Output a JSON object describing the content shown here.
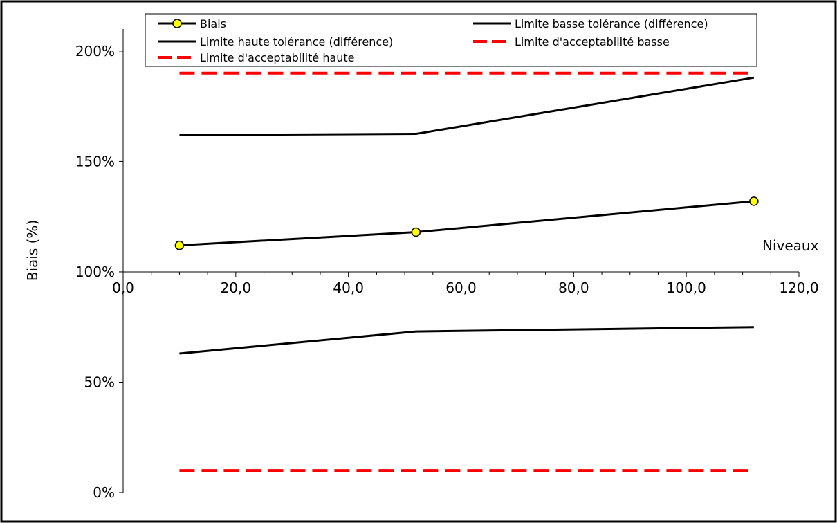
{
  "chart_data": {
    "type": "line",
    "xlabel": "Niveaux",
    "ylabel": "Biais (%)",
    "xlim": [
      0,
      120
    ],
    "ylim": [
      0,
      2.1
    ],
    "x_ticks": [
      "0,0",
      "20,0",
      "40,0",
      "60,0",
      "80,0",
      "100,0",
      "120,0"
    ],
    "y_ticks": [
      "0%",
      "50%",
      "100%",
      "150%",
      "200%"
    ],
    "x_axis_crosses_y_at": 1.0,
    "grid": false,
    "legend_position": "top",
    "series": [
      {
        "name": "Biais",
        "color": "#000000",
        "marker": "circle",
        "marker_color": "#ffff00",
        "dash": "solid",
        "x": [
          10,
          52,
          112
        ],
        "y": [
          1.12,
          1.18,
          1.32
        ]
      },
      {
        "name": "Limite basse tolérance (différence)",
        "color": "#000000",
        "marker": "none",
        "dash": "solid",
        "x": [
          10,
          52,
          112
        ],
        "y": [
          0.63,
          0.73,
          0.75
        ]
      },
      {
        "name": "Limite haute tolérance (différence)",
        "color": "#000000",
        "marker": "none",
        "dash": "solid",
        "x": [
          10,
          52,
          112
        ],
        "y": [
          1.62,
          1.625,
          1.88
        ]
      },
      {
        "name": "Limite d'acceptabilité basse",
        "color": "#ff0000",
        "marker": "none",
        "dash": "dashed",
        "x": [
          10,
          52,
          112
        ],
        "y": [
          0.1,
          0.1,
          0.1
        ]
      },
      {
        "name": "Limite d'acceptabilité haute",
        "color": "#ff0000",
        "marker": "none",
        "dash": "dashed",
        "x": [
          10,
          52,
          112
        ],
        "y": [
          1.9,
          1.9,
          1.9
        ]
      }
    ]
  }
}
